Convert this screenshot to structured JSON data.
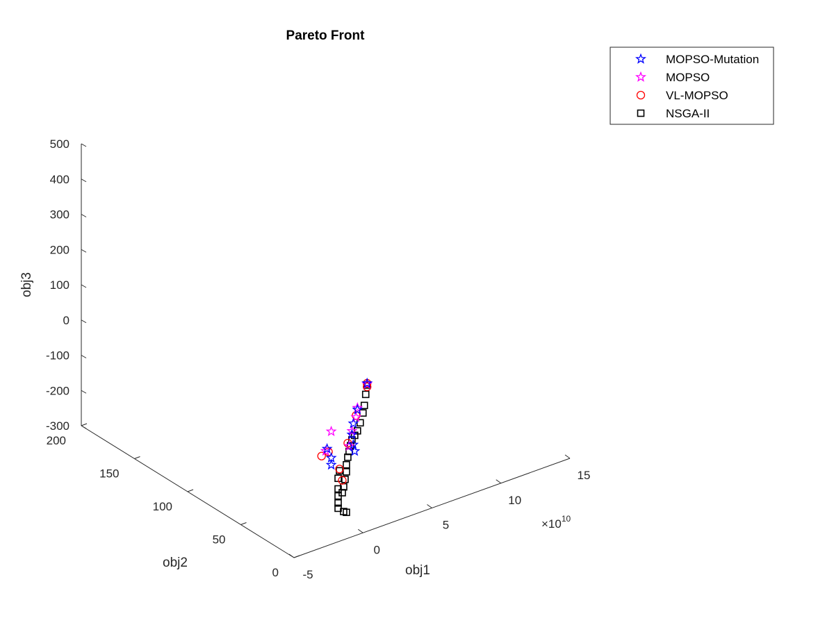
{
  "chart_data": {
    "type": "scatter",
    "title": "Pareto Front",
    "xlabel": "obj1",
    "ylabel": "obj2",
    "zlabel": "obj3",
    "x_exponent_label": "×10",
    "x_exponent": "10",
    "xlim": [
      -5,
      15
    ],
    "ylim": [
      0,
      200
    ],
    "zlim": [
      -300,
      500
    ],
    "xticks": [
      "-5",
      "0",
      "5",
      "10",
      "15"
    ],
    "yticks": [
      "0",
      "50",
      "100",
      "150",
      "200"
    ],
    "zticks": [
      "-300",
      "-200",
      "-100",
      "0",
      "100",
      "200",
      "300",
      "400",
      "500"
    ],
    "grid": false,
    "legend_position": "top-right",
    "series": [
      {
        "name": "MOPSO-Mutation",
        "marker": "pentagram",
        "color": "#0000ff",
        "points": [
          [
            0.3,
            0,
            120
          ],
          [
            -0.4,
            0,
            55
          ],
          [
            -0.7,
            0,
            20
          ],
          [
            -0.8,
            0,
            -10
          ],
          [
            -0.7,
            0,
            -40
          ],
          [
            -0.6,
            0,
            -60
          ],
          [
            -2.6,
            0,
            -25
          ],
          [
            -2.3,
            0,
            -55
          ],
          [
            -2.3,
            0,
            -75
          ]
        ]
      },
      {
        "name": "MOPSO",
        "marker": "pentagram",
        "color": "#ff00ff",
        "points": [
          [
            0.3,
            0,
            118
          ],
          [
            -0.4,
            0,
            60
          ],
          [
            -0.5,
            0,
            35
          ],
          [
            -0.8,
            0,
            0
          ],
          [
            -1.0,
            0,
            -40
          ],
          [
            -2.3,
            0,
            20
          ],
          [
            -2.7,
            0,
            -30
          ]
        ]
      },
      {
        "name": "VL-MOPSO",
        "marker": "circle",
        "color": "#ff0000",
        "points": [
          [
            0.3,
            0,
            120
          ],
          [
            0.3,
            0,
            110
          ],
          [
            -0.5,
            0,
            40
          ],
          [
            -1.1,
            0,
            -30
          ],
          [
            -1.7,
            0,
            -95
          ],
          [
            -1.5,
            0,
            -130
          ],
          [
            -3.0,
            0,
            -40
          ],
          [
            -2.5,
            0,
            -35
          ]
        ]
      },
      {
        "name": "NSGA-II",
        "marker": "square",
        "color": "#000000",
        "points": [
          [
            0.3,
            0,
            115
          ],
          [
            0.2,
            0,
            90
          ],
          [
            0.1,
            0,
            60
          ],
          [
            0.0,
            0,
            40
          ],
          [
            -0.2,
            0,
            15
          ],
          [
            -0.4,
            0,
            -5
          ],
          [
            -0.6,
            0,
            -15
          ],
          [
            -0.8,
            0,
            -25
          ],
          [
            -0.9,
            0,
            -40
          ],
          [
            -1.0,
            0,
            -55
          ],
          [
            -1.1,
            0,
            -70
          ],
          [
            -1.2,
            0,
            -90
          ],
          [
            -1.2,
            0,
            -110
          ],
          [
            -1.3,
            0,
            -130
          ],
          [
            -1.4,
            0,
            -150
          ],
          [
            -1.5,
            0,
            -165
          ],
          [
            -1.7,
            0,
            -100
          ],
          [
            -1.8,
            0,
            -120
          ],
          [
            -1.8,
            0,
            -150
          ],
          [
            -1.8,
            0,
            -170
          ],
          [
            -1.8,
            0,
            -190
          ],
          [
            -1.8,
            0,
            -205
          ],
          [
            -1.4,
            0,
            -220
          ],
          [
            -1.2,
            0,
            -225
          ]
        ]
      }
    ]
  }
}
